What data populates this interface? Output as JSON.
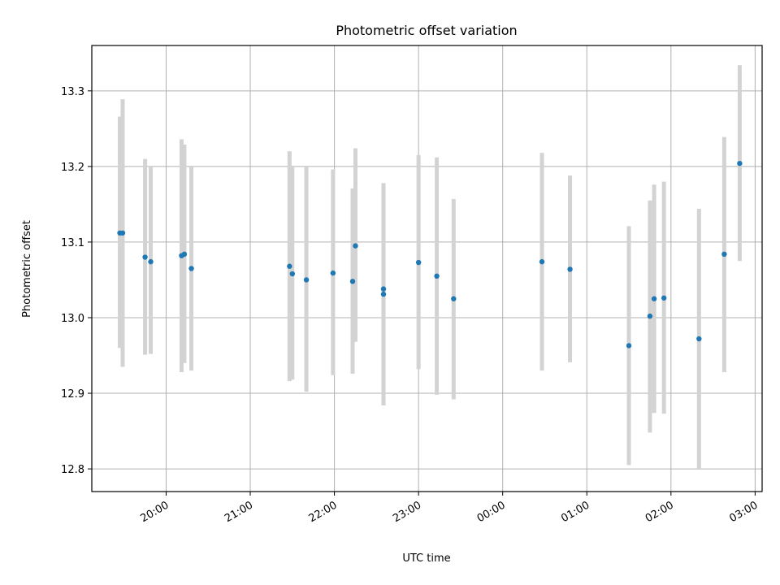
{
  "chart_data": {
    "type": "scatter",
    "title": "Photometric offset variation",
    "xlabel": "UTC time",
    "ylabel": "Photometric offset",
    "x_ticks": [
      "20:00",
      "21:00",
      "22:00",
      "23:00",
      "00:00",
      "01:00",
      "02:00",
      "03:00"
    ],
    "y_ticks": [
      "12.8",
      "12.9",
      "13.0",
      "13.1",
      "13.2",
      "13.3"
    ],
    "ylim": [
      12.77,
      13.36
    ],
    "xlim": [
      "19:07",
      "03:05"
    ],
    "grid": true,
    "marker_color": "#1f77b4",
    "errorbar_color": "#d3d3d3",
    "points": [
      {
        "x": "19:27",
        "y": 13.112,
        "ylow": 12.96,
        "yhigh": 13.266
      },
      {
        "x": "19:29",
        "y": 13.112,
        "ylow": 12.935,
        "yhigh": 13.289
      },
      {
        "x": "19:45",
        "y": 13.08,
        "ylow": 12.951,
        "yhigh": 13.21
      },
      {
        "x": "19:49",
        "y": 13.074,
        "ylow": 12.952,
        "yhigh": 13.2
      },
      {
        "x": "20:11",
        "y": 13.082,
        "ylow": 12.928,
        "yhigh": 13.236
      },
      {
        "x": "20:13",
        "y": 13.084,
        "ylow": 12.94,
        "yhigh": 13.229
      },
      {
        "x": "20:18",
        "y": 13.065,
        "ylow": 12.93,
        "yhigh": 13.2
      },
      {
        "x": "21:28",
        "y": 13.068,
        "ylow": 12.916,
        "yhigh": 13.22
      },
      {
        "x": "21:30",
        "y": 13.058,
        "ylow": 12.918,
        "yhigh": 13.199
      },
      {
        "x": "21:40",
        "y": 13.05,
        "ylow": 12.902,
        "yhigh": 13.199
      },
      {
        "x": "21:59",
        "y": 13.059,
        "ylow": 12.924,
        "yhigh": 13.196
      },
      {
        "x": "22:13",
        "y": 13.048,
        "ylow": 12.926,
        "yhigh": 13.171
      },
      {
        "x": "22:15",
        "y": 13.095,
        "ylow": 12.968,
        "yhigh": 13.224
      },
      {
        "x": "22:35",
        "y": 13.038,
        "ylow": 12.884,
        "yhigh": 13.178
      },
      {
        "x": "22:35",
        "y": 13.031,
        "ylow": 12.884,
        "yhigh": 13.178
      },
      {
        "x": "23:00",
        "y": 13.073,
        "ylow": 12.932,
        "yhigh": 13.215
      },
      {
        "x": "23:13",
        "y": 13.055,
        "ylow": 12.898,
        "yhigh": 13.212
      },
      {
        "x": "23:25",
        "y": 13.025,
        "ylow": 12.892,
        "yhigh": 13.157
      },
      {
        "x": "00:28",
        "y": 13.074,
        "ylow": 12.93,
        "yhigh": 13.218
      },
      {
        "x": "00:48",
        "y": 13.064,
        "ylow": 12.941,
        "yhigh": 13.188
      },
      {
        "x": "01:30",
        "y": 12.963,
        "ylow": 12.805,
        "yhigh": 13.121
      },
      {
        "x": "01:45",
        "y": 13.002,
        "ylow": 12.848,
        "yhigh": 13.155
      },
      {
        "x": "01:48",
        "y": 13.025,
        "ylow": 12.874,
        "yhigh": 13.176
      },
      {
        "x": "01:55",
        "y": 13.026,
        "ylow": 12.873,
        "yhigh": 13.18
      },
      {
        "x": "02:20",
        "y": 12.972,
        "ylow": 12.799,
        "yhigh": 13.144
      },
      {
        "x": "02:38",
        "y": 13.084,
        "ylow": 12.928,
        "yhigh": 13.239
      },
      {
        "x": "02:49",
        "y": 13.204,
        "ylow": 13.075,
        "yhigh": 13.334
      }
    ]
  }
}
